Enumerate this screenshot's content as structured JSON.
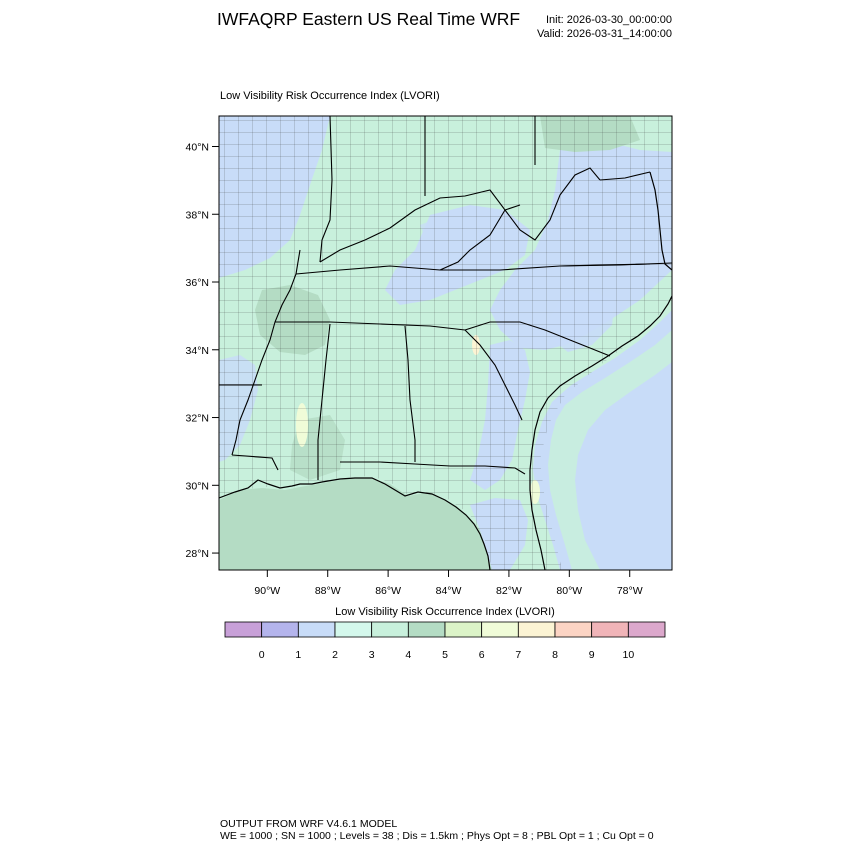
{
  "header": {
    "title": "IWFAQRP Eastern US Real Time WRF",
    "init": "Init: 2026-03-30_00:00:00",
    "valid": "Valid: 2026-03-31_14:00:00"
  },
  "map": {
    "title": "Low Visibility Risk Occurrence Index   (LVORI)",
    "lat_ticks": [
      "40°N",
      "38°N",
      "36°N",
      "34°N",
      "32°N",
      "30°N",
      "28°N"
    ],
    "lon_ticks": [
      "90°W",
      "88°W",
      "86°W",
      "84°W",
      "82°W",
      "80°W",
      "78°W"
    ],
    "extent": {
      "lon_min": -91.6,
      "lon_max": -76.6,
      "lat_min": 27.5,
      "lat_max": 40.9
    }
  },
  "colorbar": {
    "title": "Low Visibility Risk Occurrence Index  (LVORI)",
    "labels": [
      "0",
      "1",
      "2",
      "3",
      "4",
      "5",
      "6",
      "7",
      "8",
      "9",
      "10"
    ],
    "colors": [
      "#c8a0d8",
      "#b4b4ec",
      "#c8dcf8",
      "#d4f8ec",
      "#c8f0dc",
      "#b4dcc4",
      "#dcf4c8",
      "#f0fcd8",
      "#fcf4d4",
      "#fcd4c4",
      "#f0b4b8",
      "#dca8cc"
    ]
  },
  "footer": {
    "line1": "OUTPUT FROM WRF V4.6.1 MODEL",
    "line2": "WE = 1000 ; SN = 1000 ; Levels = 38 ; Dis = 1.5km ; Phys Opt = 8 ; PBL Opt = 1 ; Cu Opt = 0"
  }
}
